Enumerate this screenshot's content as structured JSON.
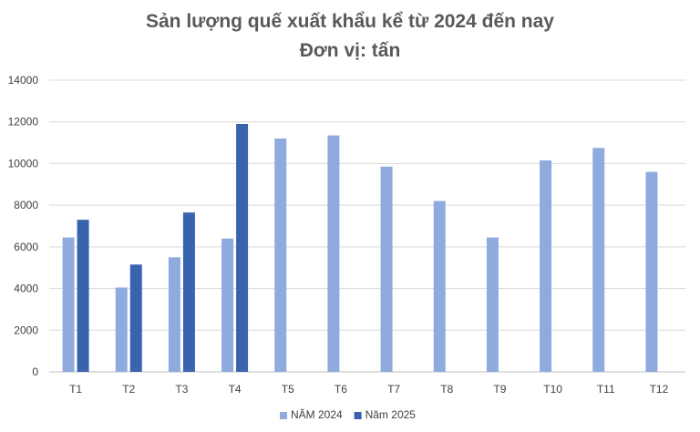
{
  "chart_data": {
    "type": "bar",
    "title": "Sản lượng quế xuất khẩu kể từ 2024 đến nay",
    "subtitle": "Đơn vị: tấn",
    "categories": [
      "T1",
      "T2",
      "T3",
      "T4",
      "T5",
      "T6",
      "T7",
      "T8",
      "T9",
      "T10",
      "T11",
      "T12"
    ],
    "series": [
      {
        "name": "NĂM 2024",
        "color": "#8faadc",
        "values": [
          6450,
          4050,
          5500,
          6400,
          11200,
          11350,
          9850,
          8200,
          6450,
          10150,
          10750,
          9600
        ]
      },
      {
        "name": "Năm 2025",
        "color": "#3a63ad",
        "values": [
          7300,
          5150,
          7650,
          11900,
          null,
          null,
          null,
          null,
          null,
          null,
          null,
          null
        ]
      }
    ],
    "ylim": [
      0,
      14000
    ],
    "yticks": [
      0,
      2000,
      4000,
      6000,
      8000,
      10000,
      12000,
      14000
    ],
    "grid": true,
    "legend": "bottom"
  }
}
